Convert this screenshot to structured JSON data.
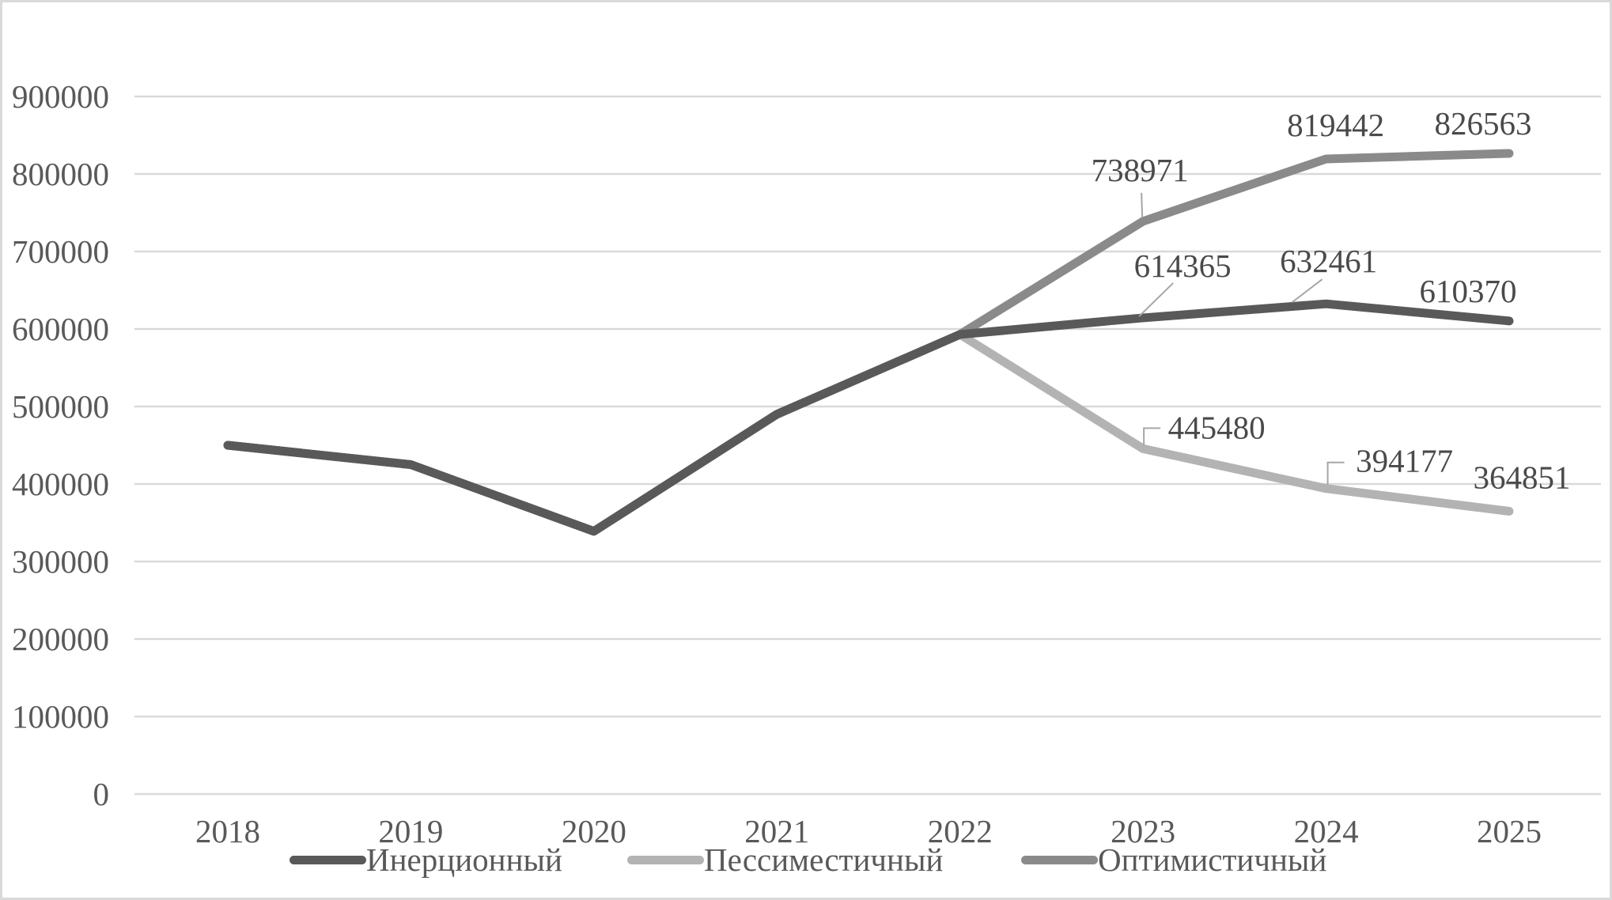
{
  "chart_data": {
    "type": "line",
    "title": "",
    "xlabel": "",
    "ylabel": "",
    "categories": [
      "2018",
      "2019",
      "2020",
      "2021",
      "2022",
      "2023",
      "2024",
      "2025"
    ],
    "series": [
      {
        "id": "inertial",
        "name": "Инерционный",
        "color": "#595959",
        "values": [
          450000,
          425000,
          339000,
          490000,
          593000,
          614365,
          632461,
          610370
        ]
      },
      {
        "id": "pessimistic",
        "name": "Пессиместичный",
        "color": "#b3b3b3",
        "values": [
          450000,
          425000,
          339000,
          490000,
          593000,
          445480,
          394177,
          364851
        ]
      },
      {
        "id": "optimistic",
        "name": "Оптимистичный",
        "color": "#8a8a8a",
        "values": [
          450000,
          425000,
          339000,
          490000,
          593000,
          738971,
          819442,
          826563
        ]
      }
    ],
    "data_label_indices": [
      5,
      6,
      7
    ],
    "data_labels": {
      "inertial": [
        "614365",
        "632461",
        "610370"
      ],
      "pessimistic": [
        "445480",
        "394177",
        "364851"
      ],
      "optimistic": [
        "738971",
        "819442",
        "826563"
      ]
    },
    "ylim": [
      0,
      900000
    ],
    "yticks": [
      0,
      100000,
      200000,
      300000,
      400000,
      500000,
      600000,
      700000,
      800000,
      900000
    ],
    "grid": true,
    "legend_position": "bottom",
    "colors": {
      "grid": "#d9d9d9",
      "axis_text": "#595959",
      "label_text": "#4a4a4a",
      "leader_line": "#a6a6a6",
      "frame_border": "#d9d9d9"
    }
  }
}
